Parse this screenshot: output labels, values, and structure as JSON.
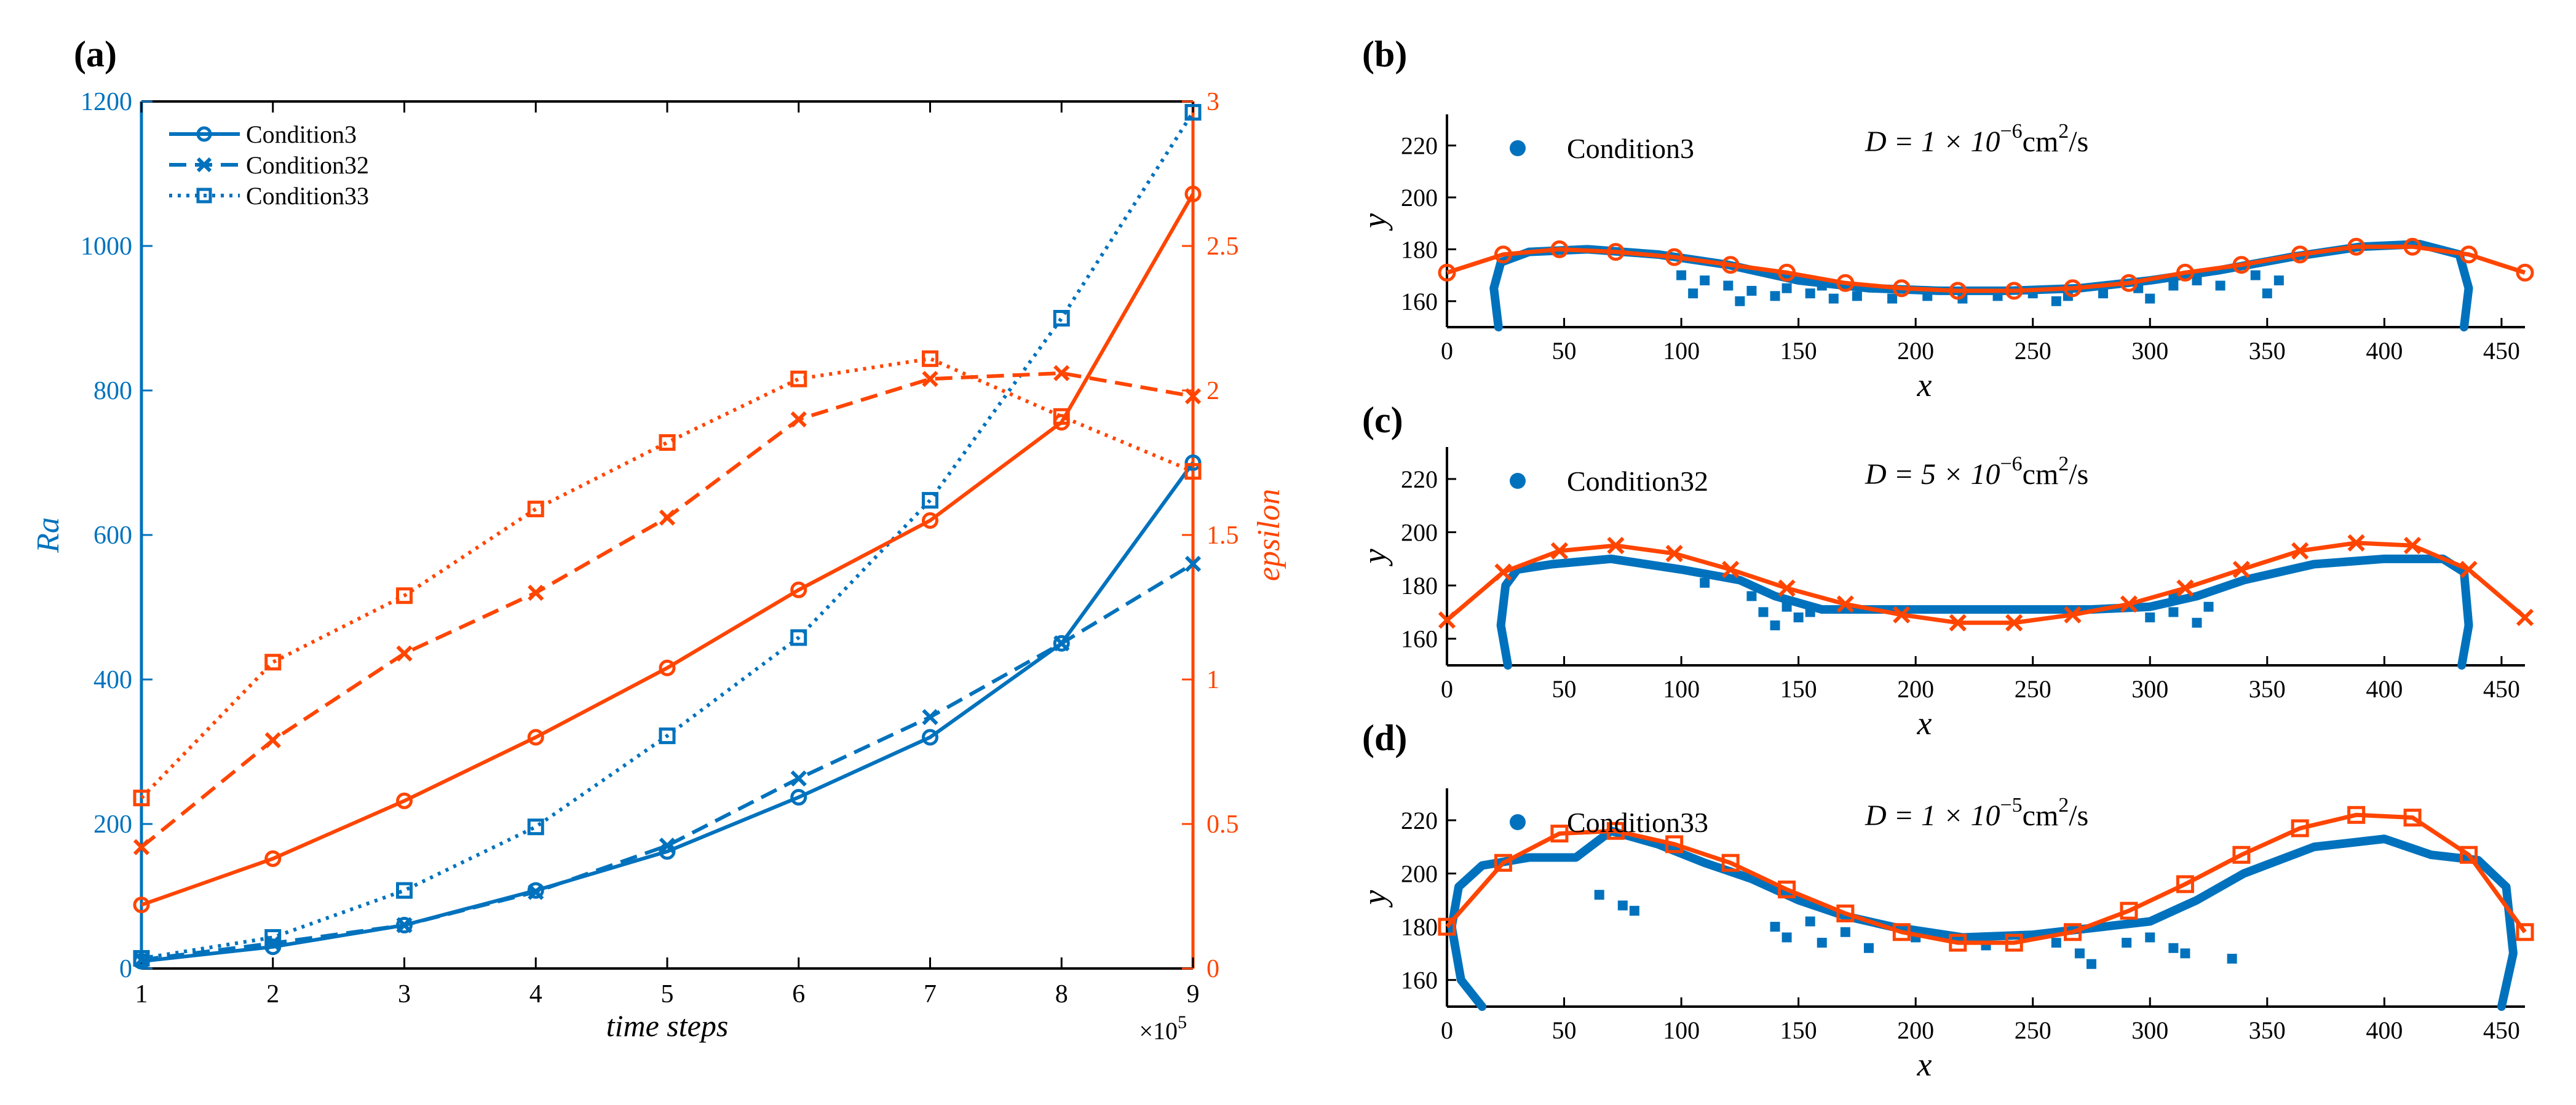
{
  "colors": {
    "blue": "#0072BD",
    "orange": "#FF4500",
    "axis": "#000000"
  },
  "chart_data": [
    {
      "panel": "(a)",
      "type": "line",
      "xlabel": "time steps",
      "x_multiplier": "×10",
      "x_multiplier_exp": "5",
      "ylabel_left": "Ra",
      "ylabel_right": "epsilon",
      "x": [
        1,
        2,
        3,
        4,
        5,
        6,
        7,
        8,
        9
      ],
      "xlim": [
        1,
        9
      ],
      "ylim_left": [
        0,
        1200
      ],
      "ylim_right": [
        0,
        3
      ],
      "xticks": [
        "1",
        "2",
        "3",
        "4",
        "5",
        "6",
        "7",
        "8",
        "9"
      ],
      "yticks_left": [
        "0",
        "200",
        "400",
        "600",
        "800",
        "1000",
        "1200"
      ],
      "yticks_right": [
        "0",
        "0.5",
        "1",
        "1.5",
        "2",
        "2.5",
        "3"
      ],
      "legend": [
        "Condition3",
        "Condition32",
        "Condition33"
      ],
      "series": [
        {
          "name": "Condition3",
          "axis": "left",
          "style": "solid",
          "marker": "circle",
          "values": [
            10,
            30,
            60,
            108,
            162,
            237,
            320,
            450,
            700
          ]
        },
        {
          "name": "Condition32",
          "axis": "left",
          "style": "dashed",
          "marker": "x",
          "values": [
            12,
            35,
            60,
            106,
            170,
            263,
            348,
            450,
            560
          ]
        },
        {
          "name": "Condition33",
          "axis": "left",
          "style": "dotted",
          "marker": "square",
          "values": [
            14,
            43,
            108,
            196,
            322,
            458,
            648,
            900,
            1185
          ]
        },
        {
          "name": "Condition3",
          "axis": "right",
          "style": "solid",
          "marker": "circle",
          "values": [
            0.22,
            0.38,
            0.58,
            0.8,
            1.04,
            1.31,
            1.55,
            1.89,
            2.68
          ]
        },
        {
          "name": "Condition32",
          "axis": "right",
          "style": "dashed",
          "marker": "x",
          "values": [
            0.42,
            0.79,
            1.09,
            1.3,
            1.56,
            1.9,
            2.04,
            2.06,
            1.98
          ]
        },
        {
          "name": "Condition33",
          "axis": "right",
          "style": "dotted",
          "marker": "square",
          "values": [
            0.59,
            1.06,
            1.29,
            1.59,
            1.82,
            2.04,
            2.11,
            1.91,
            1.72
          ]
        }
      ]
    },
    {
      "panel": "(b)",
      "type": "scatter",
      "legend": "Condition3",
      "diffusion": {
        "prefix": "D = 1 × 10",
        "exp": "−6",
        "unit": "cm",
        "unit_exp": "2",
        "suffix": "/s"
      },
      "xlabel": "x",
      "ylabel": "y",
      "xlim": [
        0,
        460
      ],
      "ylim": [
        150,
        232
      ],
      "xticks": [
        0,
        50,
        100,
        150,
        200,
        250,
        300,
        350,
        400,
        450
      ],
      "yticks": [
        160,
        180,
        200,
        220
      ],
      "marker": "circle",
      "line_x": [
        0,
        24,
        48,
        72,
        97,
        121,
        145,
        170,
        194,
        218,
        242,
        267,
        291,
        315,
        339,
        364,
        388,
        412,
        436,
        460
      ],
      "line_y": [
        171,
        178,
        180,
        179,
        177,
        174,
        171,
        167,
        165,
        164,
        164,
        165,
        167,
        171,
        174,
        178,
        181,
        181,
        178,
        171
      ],
      "boundary": [
        [
          22,
          150
        ],
        [
          20,
          165
        ],
        [
          23,
          175
        ],
        [
          35,
          179
        ],
        [
          60,
          180
        ],
        [
          90,
          178
        ],
        [
          120,
          174
        ],
        [
          150,
          168
        ],
        [
          180,
          165
        ],
        [
          210,
          164
        ],
        [
          240,
          164
        ],
        [
          270,
          165
        ],
        [
          300,
          168
        ],
        [
          330,
          172
        ],
        [
          360,
          177
        ],
        [
          390,
          181
        ],
        [
          415,
          182
        ],
        [
          432,
          178
        ],
        [
          436,
          165
        ],
        [
          434,
          150
        ]
      ],
      "scatter_points": [
        [
          100,
          170
        ],
        [
          110,
          168
        ],
        [
          120,
          166
        ],
        [
          130,
          164
        ],
        [
          140,
          162
        ],
        [
          155,
          163
        ],
        [
          165,
          161
        ],
        [
          175,
          162
        ],
        [
          190,
          161
        ],
        [
          205,
          162
        ],
        [
          220,
          161
        ],
        [
          235,
          162
        ],
        [
          250,
          163
        ],
        [
          265,
          162
        ],
        [
          280,
          163
        ],
        [
          295,
          165
        ],
        [
          310,
          166
        ],
        [
          320,
          168
        ],
        [
          330,
          166
        ],
        [
          345,
          170
        ],
        [
          355,
          168
        ],
        [
          105,
          163
        ],
        [
          125,
          160
        ],
        [
          145,
          165
        ],
        [
          160,
          166
        ],
        [
          260,
          160
        ],
        [
          300,
          161
        ],
        [
          350,
          163
        ]
      ]
    },
    {
      "panel": "(c)",
      "type": "scatter",
      "legend": "Condition32",
      "diffusion": {
        "prefix": "D = 5 × 10",
        "exp": "−6",
        "unit": "cm",
        "unit_exp": "2",
        "suffix": "/s"
      },
      "xlabel": "x",
      "ylabel": "y",
      "xlim": [
        0,
        460
      ],
      "ylim": [
        150,
        232
      ],
      "xticks": [
        0,
        50,
        100,
        150,
        200,
        250,
        300,
        350,
        400,
        450
      ],
      "yticks": [
        160,
        180,
        200,
        220
      ],
      "marker": "x",
      "line_x": [
        0,
        24,
        48,
        72,
        97,
        121,
        145,
        170,
        194,
        218,
        242,
        267,
        291,
        315,
        339,
        364,
        388,
        412,
        436,
        460
      ],
      "line_y": [
        167,
        185,
        193,
        195,
        192,
        186,
        179,
        173,
        169,
        166,
        166,
        169,
        173,
        179,
        186,
        193,
        196,
        195,
        186,
        168
      ],
      "boundary": [
        [
          26,
          150
        ],
        [
          23,
          165
        ],
        [
          25,
          180
        ],
        [
          30,
          186
        ],
        [
          45,
          188
        ],
        [
          70,
          190
        ],
        [
          100,
          186
        ],
        [
          125,
          182
        ],
        [
          140,
          176
        ],
        [
          160,
          171
        ],
        [
          190,
          171
        ],
        [
          220,
          171
        ],
        [
          250,
          171
        ],
        [
          275,
          171
        ],
        [
          300,
          172
        ],
        [
          320,
          176
        ],
        [
          340,
          182
        ],
        [
          370,
          188
        ],
        [
          400,
          190
        ],
        [
          425,
          190
        ],
        [
          434,
          185
        ],
        [
          436,
          165
        ],
        [
          433,
          150
        ]
      ],
      "scatter_points": [
        [
          110,
          181
        ],
        [
          130,
          176
        ],
        [
          135,
          170
        ],
        [
          140,
          165
        ],
        [
          145,
          172
        ],
        [
          150,
          168
        ],
        [
          155,
          170
        ],
        [
          300,
          168
        ],
        [
          310,
          170
        ],
        [
          320,
          166
        ],
        [
          325,
          172
        ],
        [
          310,
          176
        ]
      ]
    },
    {
      "panel": "(d)",
      "type": "scatter",
      "legend": "Condition33",
      "diffusion": {
        "prefix": "D = 1 × 10",
        "exp": "−5",
        "unit": "cm",
        "unit_exp": "2",
        "suffix": "/s"
      },
      "xlabel": "x",
      "ylabel": "y",
      "xlim": [
        0,
        460
      ],
      "ylim": [
        150,
        232
      ],
      "xticks": [
        0,
        50,
        100,
        150,
        200,
        250,
        300,
        350,
        400,
        450
      ],
      "yticks": [
        160,
        180,
        200,
        220
      ],
      "marker": "square",
      "line_x": [
        0,
        24,
        48,
        72,
        97,
        121,
        145,
        170,
        194,
        218,
        242,
        267,
        291,
        315,
        339,
        364,
        388,
        412,
        436,
        460
      ],
      "line_y": [
        180,
        204,
        215,
        216,
        211,
        204,
        194,
        185,
        178,
        174,
        174,
        178,
        186,
        196,
        207,
        217,
        222,
        221,
        207,
        178
      ],
      "boundary": [
        [
          15,
          150
        ],
        [
          6,
          160
        ],
        [
          2,
          180
        ],
        [
          5,
          195
        ],
        [
          15,
          203
        ],
        [
          35,
          206
        ],
        [
          55,
          206
        ],
        [
          70,
          216
        ],
        [
          90,
          211
        ],
        [
          110,
          204
        ],
        [
          130,
          198
        ],
        [
          150,
          190
        ],
        [
          170,
          184
        ],
        [
          190,
          180
        ],
        [
          220,
          176
        ],
        [
          250,
          177
        ],
        [
          280,
          180
        ],
        [
          300,
          182
        ],
        [
          320,
          190
        ],
        [
          340,
          200
        ],
        [
          370,
          210
        ],
        [
          400,
          213
        ],
        [
          420,
          207
        ],
        [
          440,
          205
        ],
        [
          452,
          195
        ],
        [
          455,
          170
        ],
        [
          450,
          150
        ]
      ],
      "scatter_points": [
        [
          75,
          188
        ],
        [
          80,
          186
        ],
        [
          65,
          192
        ],
        [
          140,
          180
        ],
        [
          145,
          176
        ],
        [
          160,
          174
        ],
        [
          170,
          178
        ],
        [
          180,
          172
        ],
        [
          200,
          176
        ],
        [
          230,
          173
        ],
        [
          260,
          174
        ],
        [
          270,
          170
        ],
        [
          290,
          174
        ],
        [
          300,
          176
        ],
        [
          310,
          172
        ],
        [
          315,
          170
        ],
        [
          335,
          168
        ],
        [
          155,
          182
        ],
        [
          275,
          166
        ]
      ]
    }
  ]
}
